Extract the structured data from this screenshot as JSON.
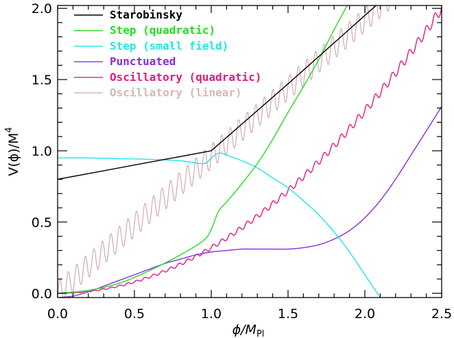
{
  "chart_data": {
    "type": "line",
    "title": "",
    "xlabel": "ϕ/M",
    "xlabel_sub": "Pl",
    "ylabel": "V(ϕ)/M",
    "ylabel_sup": "4",
    "xlim": [
      0.0,
      2.5
    ],
    "ylim": [
      -0.03,
      2.02
    ],
    "x_ticks": [
      0.0,
      0.5,
      1.0,
      1.5,
      2.0,
      2.5
    ],
    "x_tick_labels": [
      "0.0",
      "0.5",
      "1.0",
      "1.5",
      "2.0",
      "2.5"
    ],
    "y_ticks": [
      0.0,
      0.5,
      1.0,
      1.5,
      2.0
    ],
    "y_tick_labels": [
      "0.0",
      "0.5",
      "1.0",
      "1.5",
      "2.0"
    ],
    "grid": false,
    "legend_position": "top-left",
    "series": [
      {
        "name": "Starobinsky",
        "color": "#000000",
        "x": [
          0.0,
          0.25,
          0.5,
          0.75,
          1.0,
          1.5,
          2.0,
          2.5
        ],
        "y": [
          0.8,
          0.85,
          0.9,
          0.95,
          1.0,
          1.47,
          1.95,
          2.43
        ]
      },
      {
        "name": "Step (quadratic)",
        "color": "#22dd22",
        "x": [
          0.0,
          0.2,
          0.4,
          0.6,
          0.8,
          0.95,
          1.0,
          1.05,
          1.1,
          1.2,
          1.3,
          1.4,
          1.5,
          1.6,
          1.7,
          1.8,
          1.9
        ],
        "y": [
          0.0,
          0.02,
          0.07,
          0.16,
          0.27,
          0.37,
          0.45,
          0.58,
          0.64,
          0.77,
          0.91,
          1.08,
          1.27,
          1.45,
          1.64,
          1.85,
          2.05
        ]
      },
      {
        "name": "Step (small field)",
        "color": "#22e6e6",
        "x": [
          0.0,
          0.2,
          0.4,
          0.6,
          0.8,
          0.95,
          1.0,
          1.03,
          1.06,
          1.1,
          1.2,
          1.3,
          1.4,
          1.5,
          1.6,
          1.7,
          1.8,
          1.9,
          2.0,
          2.05,
          2.1
        ],
        "y": [
          0.95,
          0.95,
          0.945,
          0.94,
          0.93,
          0.91,
          0.95,
          0.975,
          0.985,
          0.97,
          0.93,
          0.88,
          0.81,
          0.74,
          0.65,
          0.55,
          0.43,
          0.29,
          0.13,
          0.05,
          -0.03
        ]
      },
      {
        "name": "Punctuated",
        "color": "#8a2be2",
        "x": [
          0.0,
          0.1,
          0.2,
          0.3,
          0.4,
          0.5,
          0.6,
          0.7,
          0.8,
          0.9,
          1.0,
          1.1,
          1.2,
          1.3,
          1.4,
          1.5,
          1.6,
          1.7,
          1.8,
          1.9,
          2.0,
          2.1,
          2.2,
          2.3,
          2.4,
          2.5
        ],
        "y": [
          -0.03,
          -0.02,
          0.01,
          0.05,
          0.09,
          0.13,
          0.17,
          0.21,
          0.24,
          0.27,
          0.29,
          0.3,
          0.31,
          0.31,
          0.31,
          0.31,
          0.32,
          0.34,
          0.38,
          0.44,
          0.53,
          0.65,
          0.8,
          0.97,
          1.14,
          1.31
        ]
      },
      {
        "name": "Oscillatory (quadratic)",
        "color": "#e6197d",
        "formula": "0.32*x^2 + 0.035*(x/2.5)*sin(2*pi*x/0.0555)",
        "x": [
          0.0,
          0.5,
          1.0,
          1.5,
          2.0,
          2.5
        ],
        "y": [
          0.0,
          0.08,
          0.32,
          0.72,
          1.28,
          2.0
        ]
      },
      {
        "name": "Oscillatory (linear)",
        "color": "#d8b4b8",
        "formula": "0.96*x + 0.085*sin(2*pi*x/0.0555)",
        "x": [
          0.0,
          0.5,
          1.0,
          1.5,
          2.0
        ],
        "y": [
          0.0,
          0.48,
          0.96,
          1.44,
          1.92
        ]
      }
    ]
  }
}
